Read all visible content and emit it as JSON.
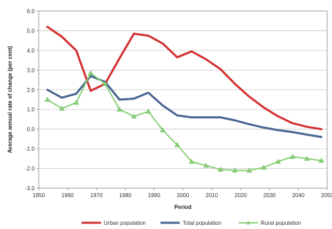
{
  "chart_data": {
    "type": "line",
    "title": "",
    "xlabel": "Period",
    "ylabel": "Average annual rate of change (per cent)",
    "xlim": [
      1950,
      2050
    ],
    "ylim": [
      -3.0,
      6.0
    ],
    "x_ticks": [
      "1950",
      "1960",
      "1970",
      "1980",
      "1990",
      "2000",
      "2010",
      "2020",
      "2030",
      "2040",
      "2050"
    ],
    "y_ticks": [
      "6.0",
      "5.0",
      "4.0",
      "3.0",
      "2.0",
      "1.0",
      "0.0",
      "-1.0",
      "-2.0",
      "-3.0"
    ],
    "grid": "horizontal",
    "legend_position": "bottom",
    "series": [
      {
        "name": "Urban population",
        "color": "#d32f2f",
        "marker": "none",
        "x": [
          1953,
          1958,
          1963,
          1968,
          1973,
          1978,
          1983,
          1988,
          1993,
          1998,
          2003,
          2008,
          2013,
          2018,
          2023,
          2028,
          2033,
          2038,
          2043,
          2048
        ],
        "values": [
          5.2,
          4.7,
          4.0,
          1.95,
          2.3,
          3.6,
          4.85,
          4.75,
          4.35,
          3.65,
          3.95,
          3.55,
          3.05,
          2.3,
          1.65,
          1.1,
          0.65,
          0.3,
          0.12,
          0.0
        ]
      },
      {
        "name": "Total population",
        "color": "#4a6491",
        "marker": "none",
        "x": [
          1953,
          1958,
          1963,
          1968,
          1973,
          1978,
          1983,
          1988,
          1993,
          1998,
          2003,
          2008,
          2013,
          2018,
          2023,
          2028,
          2033,
          2038,
          2043,
          2048
        ],
        "values": [
          2.0,
          1.6,
          1.8,
          2.7,
          2.4,
          1.5,
          1.55,
          1.85,
          1.2,
          0.7,
          0.6,
          0.6,
          0.6,
          0.45,
          0.25,
          0.08,
          -0.05,
          -0.15,
          -0.28,
          -0.4
        ]
      },
      {
        "name": "Rural population",
        "color": "#8bd17a",
        "marker": "triangle",
        "x": [
          1953,
          1958,
          1963,
          1968,
          1973,
          1978,
          1983,
          1988,
          1993,
          1998,
          2003,
          2008,
          2013,
          2018,
          2023,
          2028,
          2033,
          2038,
          2043,
          2048
        ],
        "values": [
          1.5,
          1.05,
          1.35,
          2.85,
          2.3,
          1.0,
          0.65,
          0.9,
          -0.05,
          -0.8,
          -1.65,
          -1.85,
          -2.05,
          -2.1,
          -2.1,
          -1.95,
          -1.65,
          -1.4,
          -1.5,
          -1.6
        ]
      }
    ]
  }
}
